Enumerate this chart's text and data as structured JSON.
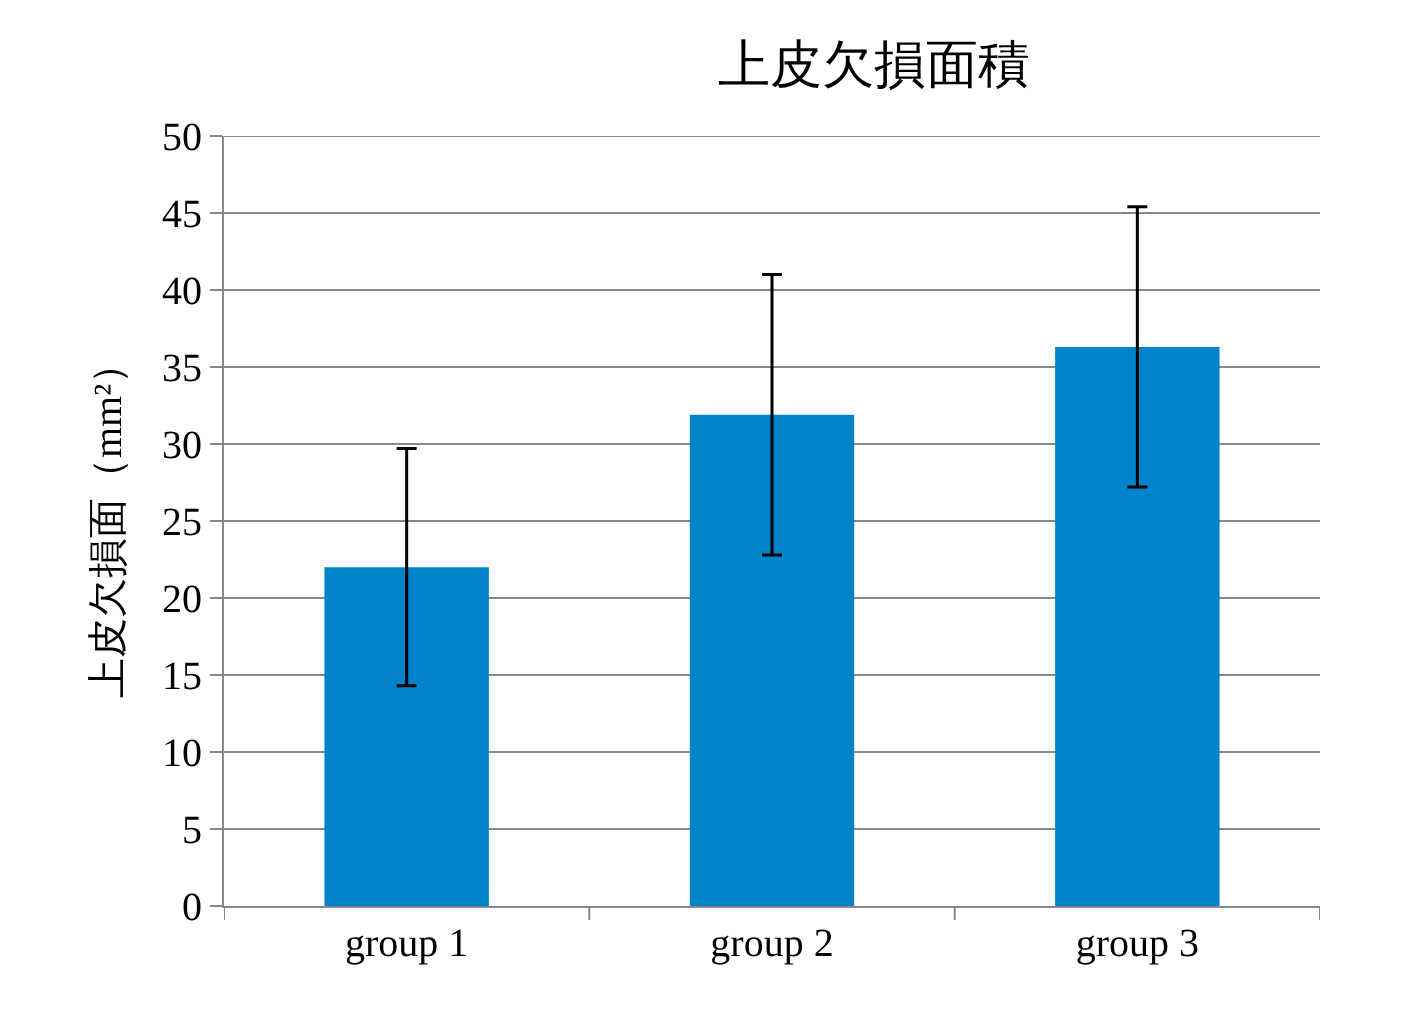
{
  "chart_data": {
    "type": "bar",
    "title": "上皮欠損面積",
    "ylabel": "上皮欠損面（mm²）",
    "categories": [
      "group 1",
      "group 2",
      "group 3"
    ],
    "values": [
      22.0,
      31.9,
      36.3
    ],
    "errors": [
      7.7,
      9.1,
      9.1
    ],
    "color": "#0083ca",
    "ylim": [
      0,
      50
    ],
    "yticks": [
      0,
      5,
      10,
      15,
      20,
      25,
      30,
      35,
      40,
      45,
      50
    ],
    "grid": "y"
  }
}
